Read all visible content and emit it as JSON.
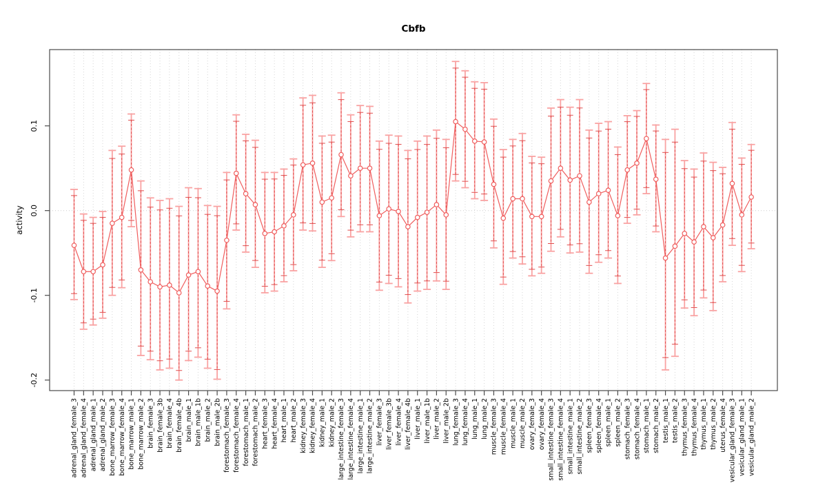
{
  "figure": {
    "title": "Cbfb",
    "ylabel": "activity"
  },
  "colors": {
    "bar_outer": "#F9A2A2",
    "bar_inner_dashed": "#E04B4B",
    "series_line": "#F05C5C",
    "marker_stroke": "#F05C5C",
    "marker_fill": "#FFFFFF",
    "grid": "#D4D4D4",
    "zero_line": "#CCCCCC",
    "axis": "#4A4A4A",
    "text": "#000000"
  },
  "chart_data": {
    "type": "line",
    "subtype": "points-with-error-bars",
    "title": "Cbfb",
    "xlabel": "",
    "ylabel": "activity",
    "ylim": [
      -0.213,
      0.19
    ],
    "yticks": [
      0.1,
      0.0,
      -0.1,
      -0.2
    ],
    "ytick_labels": [
      "0.1",
      "0.0",
      "-0.1",
      "-0.2"
    ],
    "grid": "dotted vertical line per category; dotted horizontal line at 0",
    "legend_position": "none",
    "marker": "open-circle",
    "categories": [
      "adrenal_gland_female_3",
      "adrenal_gland_female_4",
      "adrenal_gland_male_1",
      "adrenal_gland_male_2",
      "bone_marrow_female_3",
      "bone_marrow_female_4",
      "bone_marrow_male_1",
      "bone_marrow_male_2",
      "brain_female_3",
      "brain_female_3b",
      "brain_female_4",
      "brain_female_4b",
      "brain_male_1",
      "brain_male_1b",
      "brain_male_2",
      "brain_male_2b",
      "forestomach_female_3",
      "forestomach_female_4",
      "forestomach_male_1",
      "forestomach_male_2",
      "heart_female_3",
      "heart_female_4",
      "heart_male_1",
      "heart_male_2",
      "kidney_female_3",
      "kidney_female_4",
      "kidney_male_1",
      "kidney_male_2",
      "large_intestine_female_3",
      "large_intestine_female_4",
      "large_intestine_male_1",
      "large_intestine_male_2",
      "liver_female_3",
      "liver_female_3b",
      "liver_female_4",
      "liver_female_4b",
      "liver_male_1",
      "liver_male_1b",
      "liver_male_2",
      "liver_male_2b",
      "lung_female_3",
      "lung_female_4",
      "lung_male_1",
      "lung_male_2",
      "muscle_female_3",
      "muscle_female_4",
      "muscle_male_1",
      "muscle_male_2",
      "ovary_female_3",
      "ovary_female_4",
      "small_intestine_female_3",
      "small_intestine_female_4",
      "small_intestine_male_1",
      "small_intestine_male_2",
      "spleen_female_3",
      "spleen_female_4",
      "spleen_male_1",
      "spleen_male_2",
      "stomach_female_3",
      "stomach_female_4",
      "stomach_male_1",
      "stomach_male_2",
      "testis_male_1",
      "testis_male_2",
      "thymus_female_3",
      "thymus_female_4",
      "thymus_male_1",
      "thymus_male_2",
      "uterus_female_4",
      "vesicular_gland_female_3",
      "vesicular_gland_male_1",
      "vesicular_gland_male_2"
    ],
    "values": [
      -0.041,
      -0.072,
      -0.072,
      -0.064,
      -0.015,
      -0.008,
      0.048,
      -0.07,
      -0.084,
      -0.09,
      -0.088,
      -0.097,
      -0.076,
      -0.072,
      -0.089,
      -0.095,
      -0.035,
      0.044,
      0.02,
      0.007,
      -0.027,
      -0.025,
      -0.018,
      -0.005,
      0.054,
      0.056,
      0.01,
      0.015,
      0.066,
      0.041,
      0.05,
      0.05,
      -0.006,
      0.002,
      -0.001,
      -0.019,
      -0.008,
      -0.002,
      0.007,
      -0.005,
      0.105,
      0.096,
      0.082,
      0.081,
      0.031,
      -0.009,
      0.014,
      0.014,
      -0.007,
      -0.007,
      0.035,
      0.05,
      0.036,
      0.041,
      0.01,
      0.02,
      0.024,
      -0.006,
      0.048,
      0.056,
      0.085,
      0.037,
      -0.056,
      -0.042,
      -0.027,
      -0.037,
      -0.019,
      -0.032,
      -0.017,
      0.032,
      -0.005,
      0.016
    ],
    "error_low": [
      -0.105,
      -0.14,
      -0.135,
      -0.127,
      -0.1,
      -0.091,
      -0.019,
      -0.171,
      -0.176,
      -0.188,
      -0.186,
      -0.2,
      -0.177,
      -0.173,
      -0.186,
      -0.199,
      -0.116,
      -0.023,
      -0.049,
      -0.067,
      -0.097,
      -0.095,
      -0.084,
      -0.071,
      -0.023,
      -0.024,
      -0.067,
      -0.059,
      -0.007,
      -0.031,
      -0.025,
      -0.025,
      -0.094,
      -0.086,
      -0.09,
      -0.109,
      -0.095,
      -0.093,
      -0.083,
      -0.093,
      0.035,
      0.027,
      0.014,
      0.012,
      -0.044,
      -0.087,
      -0.056,
      -0.063,
      -0.077,
      -0.074,
      -0.048,
      -0.031,
      -0.05,
      -0.049,
      -0.074,
      -0.061,
      -0.056,
      -0.086,
      -0.015,
      -0.005,
      0.02,
      -0.025,
      -0.188,
      -0.172,
      -0.115,
      -0.124,
      -0.103,
      -0.118,
      -0.084,
      -0.041,
      -0.072,
      -0.045
    ],
    "error_high": [
      0.025,
      -0.004,
      -0.008,
      -0.001,
      0.071,
      0.076,
      0.114,
      0.035,
      0.015,
      0.012,
      0.014,
      0.005,
      0.027,
      0.026,
      0.006,
      0.005,
      0.045,
      0.113,
      0.09,
      0.083,
      0.045,
      0.045,
      0.049,
      0.061,
      0.133,
      0.136,
      0.088,
      0.089,
      0.139,
      0.113,
      0.124,
      0.123,
      0.082,
      0.089,
      0.088,
      0.071,
      0.082,
      0.088,
      0.095,
      0.084,
      0.176,
      0.165,
      0.152,
      0.151,
      0.108,
      0.072,
      0.084,
      0.091,
      0.064,
      0.063,
      0.121,
      0.131,
      0.122,
      0.131,
      0.095,
      0.103,
      0.105,
      0.075,
      0.112,
      0.118,
      0.15,
      0.101,
      0.084,
      0.096,
      0.059,
      0.049,
      0.068,
      0.057,
      0.051,
      0.104,
      0.062,
      0.078
    ]
  }
}
